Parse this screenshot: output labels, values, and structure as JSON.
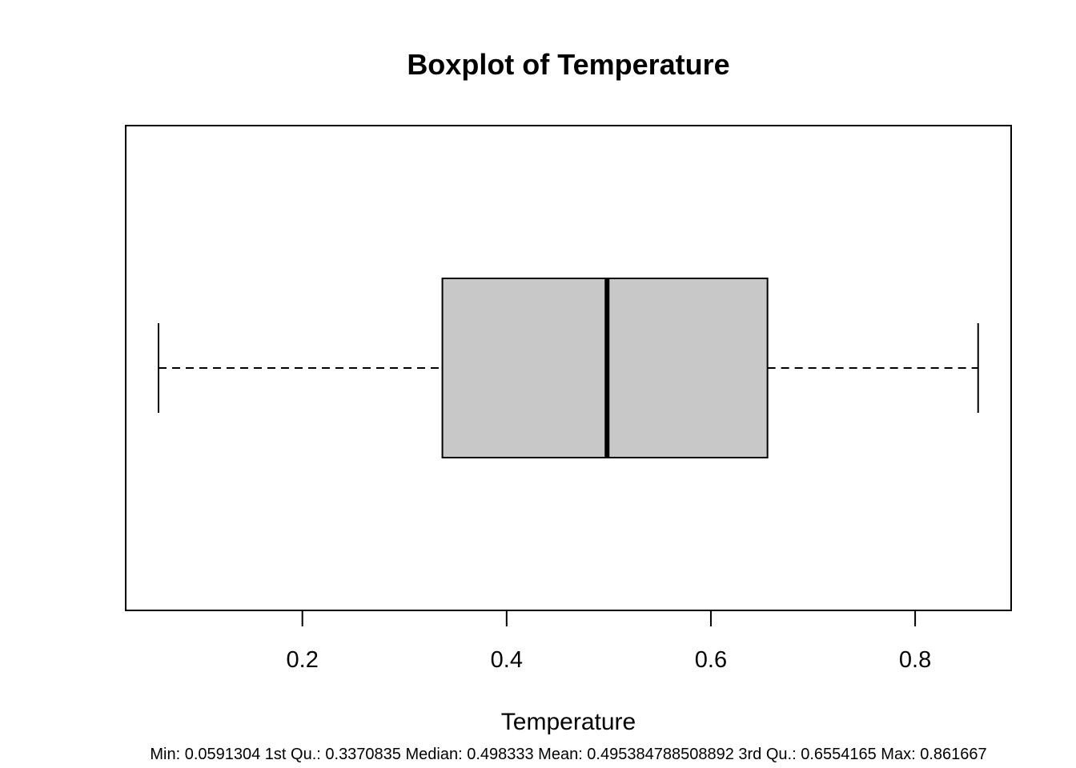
{
  "chart_data": {
    "type": "boxplot",
    "orientation": "horizontal",
    "title": "Boxplot of Temperature",
    "xlabel": "Temperature",
    "ylabel": "",
    "xlim": [
      0.027,
      0.894
    ],
    "xticks": [
      0.2,
      0.4,
      0.6,
      0.8
    ],
    "xtick_labels": [
      "0.2",
      "0.4",
      "0.6",
      "0.8"
    ],
    "grid": false,
    "stats": {
      "min": 0.0591304,
      "q1": 0.3370835,
      "median": 0.498333,
      "q3": 0.6554165,
      "max": 0.861667
    },
    "box_color": "#c8c8c8",
    "caption": "Min: 0.0591304 1st Qu.: 0.3370835 Median: 0.498333 Mean: 0.495384788508892 3rd Qu.: 0.6554165 Max: 0.861667"
  }
}
